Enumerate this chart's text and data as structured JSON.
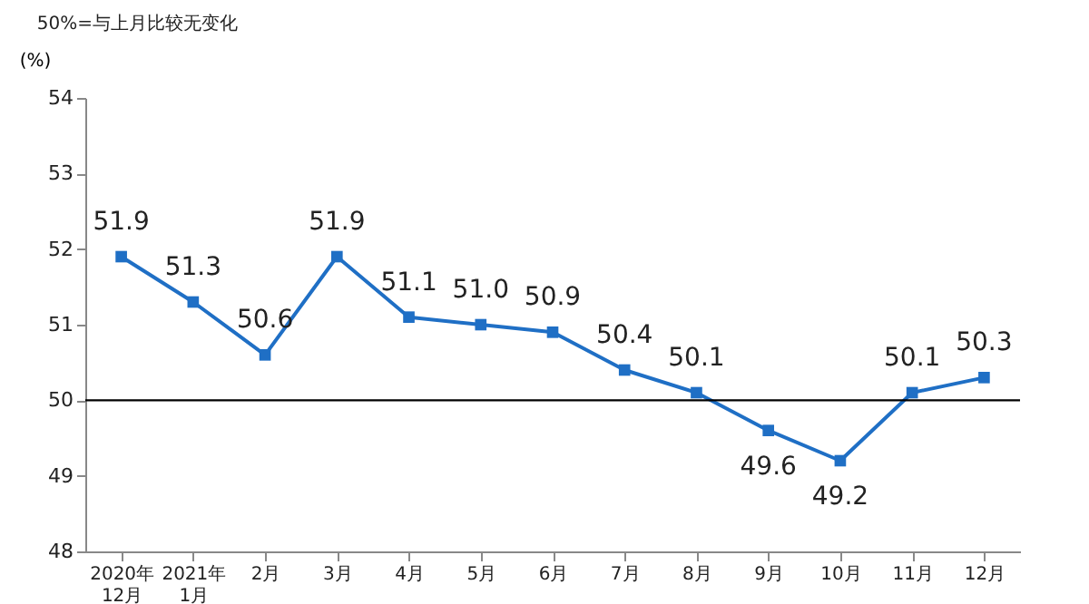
{
  "chart_data": {
    "type": "line",
    "ylabel": "(%)",
    "annotations": [
      "50%=与上月比较无变化"
    ],
    "categories": [
      "2020年\n12月",
      "2021年\n1月",
      "2月",
      "3月",
      "4月",
      "5月",
      "6月",
      "7月",
      "8月",
      "9月",
      "10月",
      "11月",
      "12月"
    ],
    "series": [
      {
        "color": "#1f6fc5",
        "values": [
          51.9,
          51.3,
          50.6,
          51.9,
          51.1,
          51.0,
          50.9,
          50.4,
          50.1,
          49.6,
          49.2,
          50.1,
          50.3
        ],
        "value_labels": [
          "51.9",
          "51.3",
          "50.6",
          "51.9",
          "51.1",
          "51.0",
          "50.9",
          "50.4",
          "50.1",
          "49.6",
          "49.2",
          "50.1",
          "50.3"
        ]
      }
    ],
    "ylim": [
      48,
      54
    ],
    "yticks": [
      48,
      49,
      50,
      51,
      52,
      53,
      54
    ],
    "ref_lines": [
      {
        "axis": "y",
        "value": 50,
        "color": "#000000"
      }
    ],
    "marker": "square",
    "line_style": "solid",
    "grid": false,
    "legend": false
  }
}
